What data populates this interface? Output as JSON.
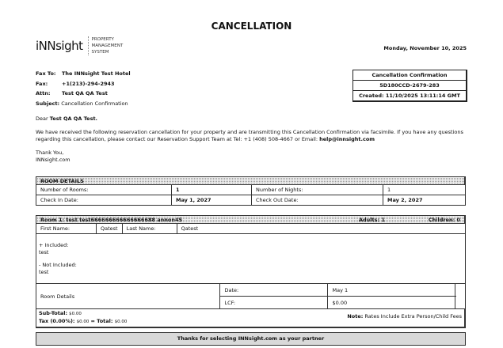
{
  "title": "CANCELLATION",
  "logo": {
    "brand": "iNNsight",
    "sub": [
      "PROPERTY",
      "MANAGEMENT",
      "SYSTEM"
    ]
  },
  "date": "Monday, November 10, 2025",
  "fax": [
    {
      "label": "Fax To:",
      "value": "The INNsight Test Hotel"
    },
    {
      "label": "Fax:",
      "value": "+1(213)-294-2943"
    },
    {
      "label": "Attn:",
      "value": "Test QA QA Test"
    },
    {
      "label": "Subject:",
      "value": "Cancellation Confirmation"
    }
  ],
  "confirmation": {
    "title": "Cancellation Confirmation",
    "number": "5D180CCD-2679-283",
    "created": "Created: 11/10/2025 13:11:14 GMT"
  },
  "letter": {
    "greeting": "Dear",
    "name": "Test QA QA Test.",
    "body": "We have received the following reservation cancellation for your property and are transmitting this Cancellation Confirmation via facsimile. If you have any questions regarding this cancellation, please contact our Reservation Support Team at Tel:  +1 (408) 508-4667 or Email: ",
    "email": "help@innsight.com",
    "thanks": "Thank You,",
    "signature": "INNsight.com"
  },
  "room_details": {
    "header": "ROOM DETAILS",
    "rooms_label": "Number of Rooms:",
    "rooms": "1",
    "nights_label": "Number of Nights:",
    "nights": "1",
    "checkin_label": "Check In Date:",
    "checkin": "May 1, 2027",
    "checkout_label": "Check Out Date:",
    "checkout": "May 2, 2027"
  },
  "room": {
    "header": "Room 1: test test666666666666666688 annon45",
    "adults": "Adults: 1",
    "children": "Children: 0",
    "first_label": "First Name:",
    "first": "Qatest",
    "last_label": "Last Name:",
    "last": "Qatest",
    "included_label": "+ Included:",
    "included": "test",
    "not_included_label": "- Not Included:",
    "not_included": "test",
    "details_label": "Room Details",
    "date_label": "Date:",
    "date": "May 1",
    "lcf_label": "LCF:",
    "lcf": "$0.00",
    "subtotal_label": "Sub-Total:",
    "subtotal": "$0.00",
    "tax_label": "Tax (0.00%):",
    "tax": "$0.00",
    "total_label": "= Total:",
    "total": "$0.00",
    "note_label": "Note:",
    "note": "Rates Include Extra Person/Child Fees"
  },
  "footer": "Thanks for selecting INNsight.com as your partner"
}
